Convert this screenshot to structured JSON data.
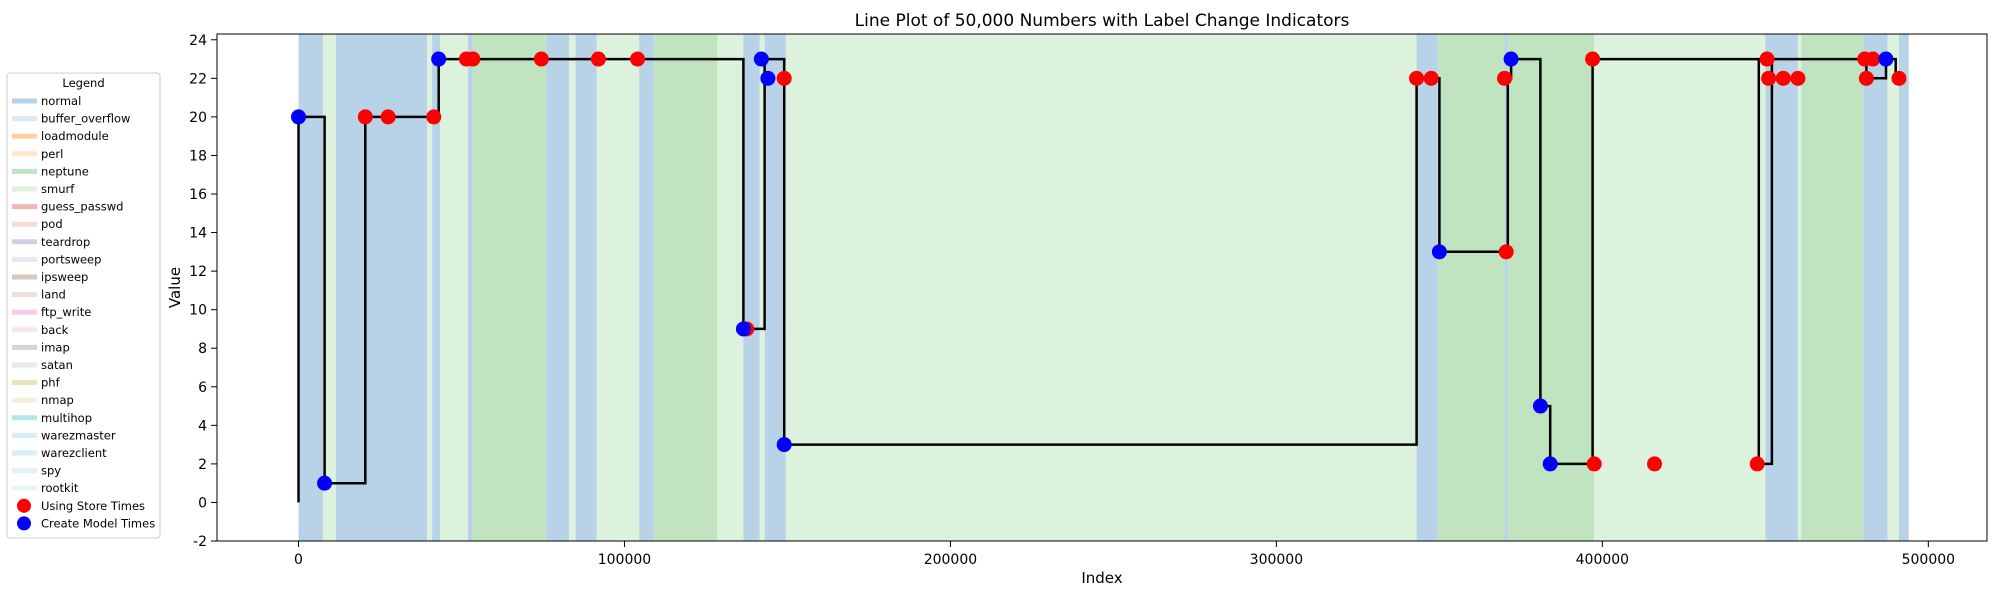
{
  "chart_data": {
    "type": "line",
    "title": "Line Plot of 50,000 Numbers with Label Change Indicators",
    "xlabel": "Index",
    "ylabel": "Value",
    "xlim": [
      -25000,
      518000
    ],
    "ylim": [
      -2,
      24.3
    ],
    "xticks": [
      0,
      100000,
      200000,
      300000,
      400000,
      500000
    ],
    "yticks": [
      -2,
      0,
      2,
      4,
      6,
      8,
      10,
      12,
      14,
      16,
      18,
      20,
      22,
      24
    ],
    "legend_title": "Legend",
    "legend_position": "left-outside",
    "label_colors": {
      "normal": "#b8d3e8",
      "buffer_overflow": "#dceaf5",
      "loadmodule": "#ffcfa3",
      "perl": "#ffe6cc",
      "neptune": "#c0e3c0",
      "smurf": "#ddf2dc",
      "guess_passwd": "#f1b5b5",
      "pod": "#f9d8d8",
      "teardrop": "#d9cce8",
      "portsweep": "#ebe5f2",
      "ipsweep": "#dcc4bf",
      "land": "#ede0dc",
      "ftp_write": "#f6cce6",
      "back": "#fae4f1",
      "imap": "#d4d4d4",
      "satan": "#e9e9e9",
      "phf": "#e6e6b8",
      "nmap": "#f2f2d9",
      "multihop": "#b5e5ee",
      "warezmaster": "#d7f0f4",
      "warezclient": "#d7f0f4",
      "spy": "#dff2f5",
      "rootkit": "#e6f5f7"
    },
    "legend_entries": [
      {
        "label": "normal",
        "kind": "line"
      },
      {
        "label": "buffer_overflow",
        "kind": "line"
      },
      {
        "label": "loadmodule",
        "kind": "line"
      },
      {
        "label": "perl",
        "kind": "line"
      },
      {
        "label": "neptune",
        "kind": "line"
      },
      {
        "label": "smurf",
        "kind": "line"
      },
      {
        "label": "guess_passwd",
        "kind": "line"
      },
      {
        "label": "pod",
        "kind": "line"
      },
      {
        "label": "teardrop",
        "kind": "line"
      },
      {
        "label": "portsweep",
        "kind": "line"
      },
      {
        "label": "ipsweep",
        "kind": "line"
      },
      {
        "label": "land",
        "kind": "line"
      },
      {
        "label": "ftp_write",
        "kind": "line"
      },
      {
        "label": "back",
        "kind": "line"
      },
      {
        "label": "imap",
        "kind": "line"
      },
      {
        "label": "satan",
        "kind": "line"
      },
      {
        "label": "phf",
        "kind": "line"
      },
      {
        "label": "nmap",
        "kind": "line"
      },
      {
        "label": "multihop",
        "kind": "line"
      },
      {
        "label": "warezmaster",
        "kind": "line"
      },
      {
        "label": "warezclient",
        "kind": "line"
      },
      {
        "label": "spy",
        "kind": "line"
      },
      {
        "label": "rootkit",
        "kind": "line"
      },
      {
        "label": "Using Store Times",
        "kind": "marker",
        "color": "#ff0000"
      },
      {
        "label": "Create Model Times",
        "kind": "marker",
        "color": "#0000ff"
      }
    ],
    "background_regions": [
      {
        "label": "normal",
        "x0": 0,
        "x1": 7500
      },
      {
        "label": "smurf",
        "x0": 7500,
        "x1": 11500
      },
      {
        "label": "normal",
        "x0": 11500,
        "x1": 39500
      },
      {
        "label": "smurf",
        "x0": 39500,
        "x1": 41000
      },
      {
        "label": "normal",
        "x0": 41000,
        "x1": 43500
      },
      {
        "label": "smurf",
        "x0": 43500,
        "x1": 52000
      },
      {
        "label": "normal",
        "x0": 52000,
        "x1": 53500
      },
      {
        "label": "neptune",
        "x0": 53500,
        "x1": 76000
      },
      {
        "label": "normal",
        "x0": 76000,
        "x1": 83000
      },
      {
        "label": "smurf",
        "x0": 83000,
        "x1": 85000
      },
      {
        "label": "normal",
        "x0": 85000,
        "x1": 91500
      },
      {
        "label": "smurf",
        "x0": 91500,
        "x1": 104500
      },
      {
        "label": "normal",
        "x0": 104500,
        "x1": 109000
      },
      {
        "label": "neptune",
        "x0": 109000,
        "x1": 128500
      },
      {
        "label": "smurf",
        "x0": 128500,
        "x1": 136500
      },
      {
        "label": "normal",
        "x0": 136500,
        "x1": 141500
      },
      {
        "label": "smurf",
        "x0": 141500,
        "x1": 143000
      },
      {
        "label": "normal",
        "x0": 143000,
        "x1": 149500
      },
      {
        "label": "smurf",
        "x0": 149500,
        "x1": 343000
      },
      {
        "label": "normal",
        "x0": 343000,
        "x1": 349500
      },
      {
        "label": "neptune",
        "x0": 349500,
        "x1": 370000
      },
      {
        "label": "normal",
        "x0": 370000,
        "x1": 371000
      },
      {
        "label": "neptune",
        "x0": 371000,
        "x1": 397500
      },
      {
        "label": "smurf",
        "x0": 397500,
        "x1": 450000
      },
      {
        "label": "normal",
        "x0": 450000,
        "x1": 460000
      },
      {
        "label": "smurf",
        "x0": 460000,
        "x1": 461000
      },
      {
        "label": "neptune",
        "x0": 461000,
        "x1": 480000
      },
      {
        "label": "normal",
        "x0": 480000,
        "x1": 487500
      },
      {
        "label": "smurf",
        "x0": 487500,
        "x1": 491000
      },
      {
        "label": "normal",
        "x0": 491000,
        "x1": 494000
      }
    ],
    "series": [
      {
        "kind": "step",
        "color": "#000000",
        "x": [
          0,
          0,
          8000,
          8000,
          20500,
          20500,
          41500,
          41500,
          43000,
          43000,
          136500,
          136500,
          141500,
          141500,
          143000,
          143000,
          149000,
          149000,
          343000,
          343000,
          350000,
          350000,
          370000,
          370000,
          371000,
          371000,
          372000,
          372000,
          381000,
          381000,
          384000,
          384000,
          396000,
          396000,
          397000,
          397000,
          448000,
          448000,
          450000,
          450000,
          452000,
          452000,
          481000,
          481000,
          483000,
          483000,
          487000,
          487000,
          490000,
          490000,
          492000
        ],
        "y": [
          0,
          20,
          20,
          1,
          1,
          20,
          20,
          20,
          20,
          23,
          23,
          9,
          9,
          9,
          9,
          23,
          23,
          3,
          3,
          22,
          22,
          13,
          13,
          13,
          13,
          22,
          22,
          23,
          23,
          5,
          5,
          2,
          2,
          2,
          2,
          23,
          23,
          2,
          2,
          2,
          2,
          23,
          23,
          22,
          22,
          22,
          22,
          23,
          23,
          22,
          22
        ]
      },
      {
        "name": "Using Store Times",
        "kind": "scatter",
        "color": "#ff0000",
        "x": [
          20500,
          27500,
          41500,
          51500,
          53500,
          74500,
          92000,
          104000,
          137500,
          149000,
          343000,
          347500,
          370000,
          370500,
          397000,
          397500,
          416000,
          447500,
          450500,
          451000,
          455500,
          460000,
          480500,
          481000,
          483000,
          491000
        ],
        "y": [
          20,
          20,
          20,
          23,
          23,
          23,
          23,
          23,
          9,
          22,
          22,
          22,
          22,
          13,
          23,
          2,
          2,
          2,
          23,
          22,
          22,
          22,
          23,
          22,
          23,
          22
        ]
      },
      {
        "name": "Create Model Times",
        "kind": "scatter",
        "color": "#0000ff",
        "x": [
          0,
          8000,
          43000,
          136500,
          142000,
          144000,
          149000,
          350000,
          372000,
          381000,
          384000,
          487000
        ],
        "y": [
          20,
          1,
          23,
          9,
          23,
          22,
          3,
          13,
          23,
          5,
          2,
          23
        ]
      }
    ]
  }
}
